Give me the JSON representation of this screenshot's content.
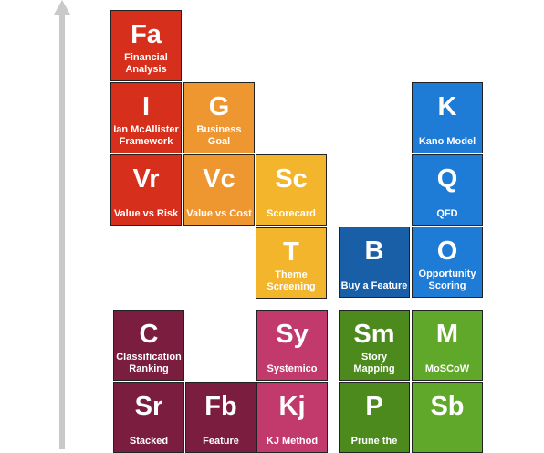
{
  "colors": {
    "axis": "#c9c9c9",
    "red": "#d6301c",
    "orange": "#ee9630",
    "yellow": "#f2b52c",
    "blue": "#1e7bd6",
    "dark_blue": "#185fa8",
    "maroon": "#7a1d3e",
    "pink": "#c23a6c",
    "green_dark": "#4c8a1e",
    "green_light": "#60a82a"
  },
  "axis": {
    "icon": "up-arrow-icon"
  },
  "tiles": [
    {
      "id": "fa",
      "symbol": "Fa",
      "name": "Financial Analysis",
      "color": "red"
    },
    {
      "id": "i",
      "symbol": "I",
      "name": "Ian McAllister Framework",
      "color": "red"
    },
    {
      "id": "vr",
      "symbol": "Vr",
      "name": "Value vs Risk",
      "color": "red"
    },
    {
      "id": "g",
      "symbol": "G",
      "name": "Business Goal",
      "color": "orange"
    },
    {
      "id": "vc",
      "symbol": "Vc",
      "name": "Value vs Cost",
      "color": "orange"
    },
    {
      "id": "sc",
      "symbol": "Sc",
      "name": "Scorecard",
      "color": "yellow"
    },
    {
      "id": "t",
      "symbol": "T",
      "name": "Theme Screening",
      "color": "yellow"
    },
    {
      "id": "b",
      "symbol": "B",
      "name": "Buy a Feature",
      "color": "dark_blue"
    },
    {
      "id": "k",
      "symbol": "K",
      "name": "Kano Model",
      "color": "blue"
    },
    {
      "id": "q",
      "symbol": "Q",
      "name": "QFD",
      "color": "blue"
    },
    {
      "id": "o",
      "symbol": "O",
      "name": "Opportunity Scoring",
      "color": "blue"
    },
    {
      "id": "c",
      "symbol": "C",
      "name": "Classification Ranking",
      "color": "maroon"
    },
    {
      "id": "sr",
      "symbol": "Sr",
      "name": "Stacked",
      "color": "maroon"
    },
    {
      "id": "fb",
      "symbol": "Fb",
      "name": "Feature",
      "color": "maroon"
    },
    {
      "id": "sy",
      "symbol": "Sy",
      "name": "Systemico",
      "color": "pink"
    },
    {
      "id": "kj",
      "symbol": "Kj",
      "name": "KJ Method",
      "color": "pink"
    },
    {
      "id": "sm",
      "symbol": "Sm",
      "name": "Story Mapping",
      "color": "green_dark"
    },
    {
      "id": "p",
      "symbol": "P",
      "name": "Prune the",
      "color": "green_dark"
    },
    {
      "id": "m",
      "symbol": "M",
      "name": "MoSCoW",
      "color": "green_light"
    },
    {
      "id": "sb",
      "symbol": "Sb",
      "name": "",
      "color": "green_light"
    }
  ]
}
